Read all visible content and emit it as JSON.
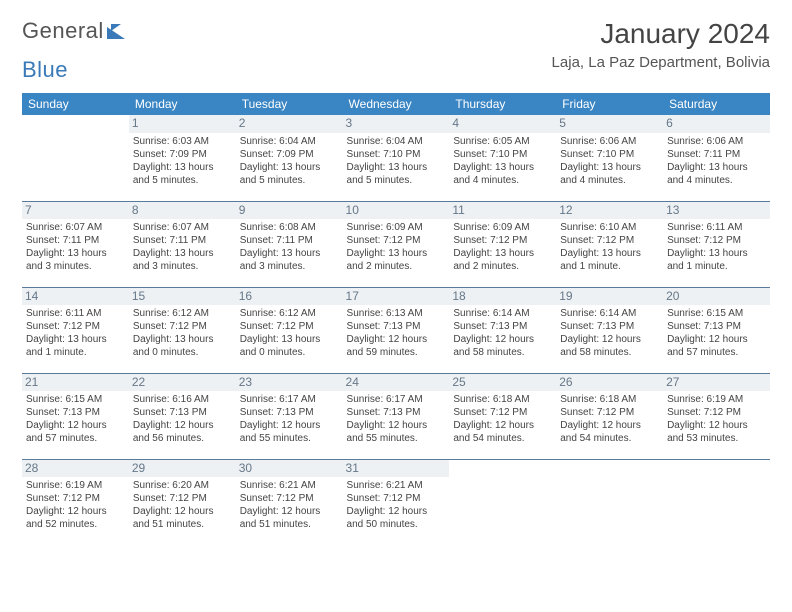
{
  "logo": {
    "word1": "General",
    "word2": "Blue"
  },
  "title": "January 2024",
  "location": "Laja, La Paz Department, Bolivia",
  "dows": [
    "Sunday",
    "Monday",
    "Tuesday",
    "Wednesday",
    "Thursday",
    "Friday",
    "Saturday"
  ],
  "colors": {
    "header_bg": "#3a85c4",
    "header_text": "#ffffff",
    "daynum_bg": "#edf1f4",
    "daynum_text": "#667788",
    "divider": "#5a7a9c",
    "logo_blue": "#3a7ab8"
  },
  "weeks": [
    [
      null,
      {
        "n": "1",
        "sr": "Sunrise: 6:03 AM",
        "ss": "Sunset: 7:09 PM",
        "d1": "Daylight: 13 hours",
        "d2": "and 5 minutes."
      },
      {
        "n": "2",
        "sr": "Sunrise: 6:04 AM",
        "ss": "Sunset: 7:09 PM",
        "d1": "Daylight: 13 hours",
        "d2": "and 5 minutes."
      },
      {
        "n": "3",
        "sr": "Sunrise: 6:04 AM",
        "ss": "Sunset: 7:10 PM",
        "d1": "Daylight: 13 hours",
        "d2": "and 5 minutes."
      },
      {
        "n": "4",
        "sr": "Sunrise: 6:05 AM",
        "ss": "Sunset: 7:10 PM",
        "d1": "Daylight: 13 hours",
        "d2": "and 4 minutes."
      },
      {
        "n": "5",
        "sr": "Sunrise: 6:06 AM",
        "ss": "Sunset: 7:10 PM",
        "d1": "Daylight: 13 hours",
        "d2": "and 4 minutes."
      },
      {
        "n": "6",
        "sr": "Sunrise: 6:06 AM",
        "ss": "Sunset: 7:11 PM",
        "d1": "Daylight: 13 hours",
        "d2": "and 4 minutes."
      }
    ],
    [
      {
        "n": "7",
        "sr": "Sunrise: 6:07 AM",
        "ss": "Sunset: 7:11 PM",
        "d1": "Daylight: 13 hours",
        "d2": "and 3 minutes."
      },
      {
        "n": "8",
        "sr": "Sunrise: 6:07 AM",
        "ss": "Sunset: 7:11 PM",
        "d1": "Daylight: 13 hours",
        "d2": "and 3 minutes."
      },
      {
        "n": "9",
        "sr": "Sunrise: 6:08 AM",
        "ss": "Sunset: 7:11 PM",
        "d1": "Daylight: 13 hours",
        "d2": "and 3 minutes."
      },
      {
        "n": "10",
        "sr": "Sunrise: 6:09 AM",
        "ss": "Sunset: 7:12 PM",
        "d1": "Daylight: 13 hours",
        "d2": "and 2 minutes."
      },
      {
        "n": "11",
        "sr": "Sunrise: 6:09 AM",
        "ss": "Sunset: 7:12 PM",
        "d1": "Daylight: 13 hours",
        "d2": "and 2 minutes."
      },
      {
        "n": "12",
        "sr": "Sunrise: 6:10 AM",
        "ss": "Sunset: 7:12 PM",
        "d1": "Daylight: 13 hours",
        "d2": "and 1 minute."
      },
      {
        "n": "13",
        "sr": "Sunrise: 6:11 AM",
        "ss": "Sunset: 7:12 PM",
        "d1": "Daylight: 13 hours",
        "d2": "and 1 minute."
      }
    ],
    [
      {
        "n": "14",
        "sr": "Sunrise: 6:11 AM",
        "ss": "Sunset: 7:12 PM",
        "d1": "Daylight: 13 hours",
        "d2": "and 1 minute."
      },
      {
        "n": "15",
        "sr": "Sunrise: 6:12 AM",
        "ss": "Sunset: 7:12 PM",
        "d1": "Daylight: 13 hours",
        "d2": "and 0 minutes."
      },
      {
        "n": "16",
        "sr": "Sunrise: 6:12 AM",
        "ss": "Sunset: 7:12 PM",
        "d1": "Daylight: 13 hours",
        "d2": "and 0 minutes."
      },
      {
        "n": "17",
        "sr": "Sunrise: 6:13 AM",
        "ss": "Sunset: 7:13 PM",
        "d1": "Daylight: 12 hours",
        "d2": "and 59 minutes."
      },
      {
        "n": "18",
        "sr": "Sunrise: 6:14 AM",
        "ss": "Sunset: 7:13 PM",
        "d1": "Daylight: 12 hours",
        "d2": "and 58 minutes."
      },
      {
        "n": "19",
        "sr": "Sunrise: 6:14 AM",
        "ss": "Sunset: 7:13 PM",
        "d1": "Daylight: 12 hours",
        "d2": "and 58 minutes."
      },
      {
        "n": "20",
        "sr": "Sunrise: 6:15 AM",
        "ss": "Sunset: 7:13 PM",
        "d1": "Daylight: 12 hours",
        "d2": "and 57 minutes."
      }
    ],
    [
      {
        "n": "21",
        "sr": "Sunrise: 6:15 AM",
        "ss": "Sunset: 7:13 PM",
        "d1": "Daylight: 12 hours",
        "d2": "and 57 minutes."
      },
      {
        "n": "22",
        "sr": "Sunrise: 6:16 AM",
        "ss": "Sunset: 7:13 PM",
        "d1": "Daylight: 12 hours",
        "d2": "and 56 minutes."
      },
      {
        "n": "23",
        "sr": "Sunrise: 6:17 AM",
        "ss": "Sunset: 7:13 PM",
        "d1": "Daylight: 12 hours",
        "d2": "and 55 minutes."
      },
      {
        "n": "24",
        "sr": "Sunrise: 6:17 AM",
        "ss": "Sunset: 7:13 PM",
        "d1": "Daylight: 12 hours",
        "d2": "and 55 minutes."
      },
      {
        "n": "25",
        "sr": "Sunrise: 6:18 AM",
        "ss": "Sunset: 7:12 PM",
        "d1": "Daylight: 12 hours",
        "d2": "and 54 minutes."
      },
      {
        "n": "26",
        "sr": "Sunrise: 6:18 AM",
        "ss": "Sunset: 7:12 PM",
        "d1": "Daylight: 12 hours",
        "d2": "and 54 minutes."
      },
      {
        "n": "27",
        "sr": "Sunrise: 6:19 AM",
        "ss": "Sunset: 7:12 PM",
        "d1": "Daylight: 12 hours",
        "d2": "and 53 minutes."
      }
    ],
    [
      {
        "n": "28",
        "sr": "Sunrise: 6:19 AM",
        "ss": "Sunset: 7:12 PM",
        "d1": "Daylight: 12 hours",
        "d2": "and 52 minutes."
      },
      {
        "n": "29",
        "sr": "Sunrise: 6:20 AM",
        "ss": "Sunset: 7:12 PM",
        "d1": "Daylight: 12 hours",
        "d2": "and 51 minutes."
      },
      {
        "n": "30",
        "sr": "Sunrise: 6:21 AM",
        "ss": "Sunset: 7:12 PM",
        "d1": "Daylight: 12 hours",
        "d2": "and 51 minutes."
      },
      {
        "n": "31",
        "sr": "Sunrise: 6:21 AM",
        "ss": "Sunset: 7:12 PM",
        "d1": "Daylight: 12 hours",
        "d2": "and 50 minutes."
      },
      null,
      null,
      null
    ]
  ]
}
